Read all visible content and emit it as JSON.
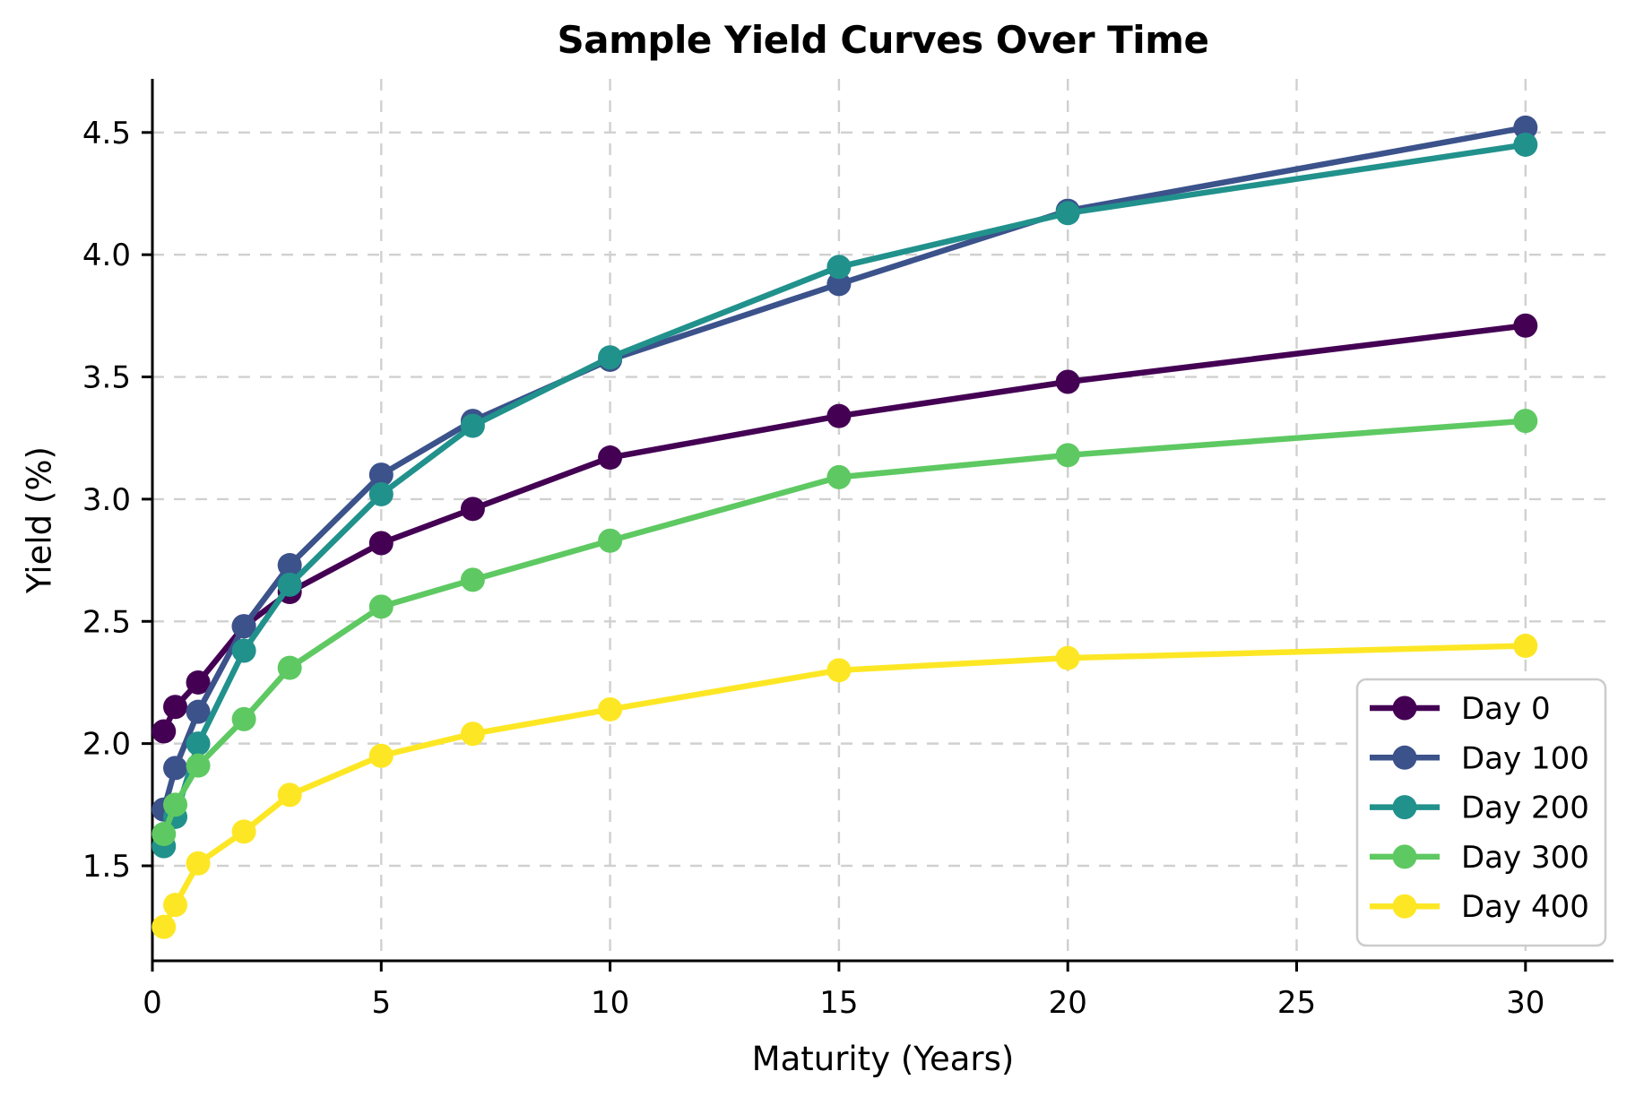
{
  "figure": {
    "title": "Sample Yield Curves Over Time",
    "xlabel": "Maturity (Years)",
    "ylabel": "Yield (%)"
  },
  "chart_data": {
    "type": "line",
    "title": "Sample Yield Curves Over Time",
    "xlabel": "Maturity (Years)",
    "ylabel": "Yield (%)",
    "x": [
      0.25,
      0.5,
      1,
      2,
      3,
      5,
      7,
      10,
      15,
      20,
      30
    ],
    "series": [
      {
        "name": "Day 0",
        "color": "#440154",
        "values": [
          2.05,
          2.15,
          2.25,
          2.48,
          2.62,
          2.82,
          2.96,
          3.17,
          3.34,
          3.48,
          3.71
        ]
      },
      {
        "name": "Day 100",
        "color": "#3B528B",
        "values": [
          1.73,
          1.9,
          2.13,
          2.48,
          2.73,
          3.1,
          3.32,
          3.57,
          3.88,
          4.18,
          4.52
        ]
      },
      {
        "name": "Day 200",
        "color": "#21918C",
        "values": [
          1.58,
          1.7,
          2.0,
          2.38,
          2.65,
          3.02,
          3.3,
          3.58,
          3.95,
          4.17,
          4.45
        ]
      },
      {
        "name": "Day 300",
        "color": "#5EC962",
        "values": [
          1.63,
          1.75,
          1.91,
          2.1,
          2.31,
          2.56,
          2.67,
          2.83,
          3.09,
          3.18,
          3.32
        ]
      },
      {
        "name": "Day 400",
        "color": "#FDE725",
        "values": [
          1.25,
          1.34,
          1.51,
          1.64,
          1.79,
          1.95,
          2.04,
          2.14,
          2.3,
          2.35,
          2.4
        ]
      }
    ],
    "x_ticks": [
      0,
      5,
      10,
      15,
      20,
      25,
      30
    ],
    "y_ticks": [
      1.5,
      2.0,
      2.5,
      3.0,
      3.5,
      4.0,
      4.5
    ],
    "xlim": [
      0,
      31.9
    ],
    "ylim": [
      1.11,
      4.72
    ],
    "grid": true,
    "grid_style": "dashed",
    "legend_position": "lower right",
    "colors": {
      "grid": "#cccccc",
      "spine": "#000000",
      "background": "#ffffff",
      "text": "#000000",
      "legend_border": "#cccccc"
    }
  }
}
